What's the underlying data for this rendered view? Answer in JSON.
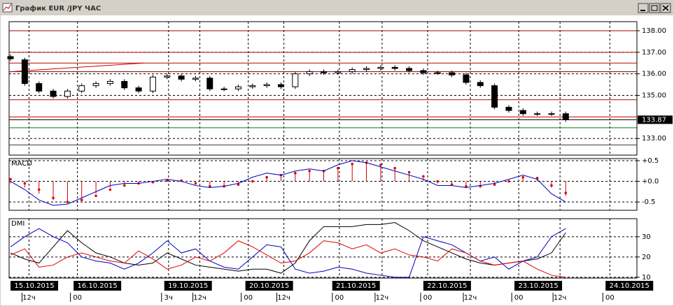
{
  "window": {
    "title": "График EUR /JPY  ЧАС"
  },
  "chart_data": [
    {
      "type": "candlestick",
      "xlim": [
        -0.1,
        44.0
      ],
      "ylim": [
        132.23,
        138.42
      ],
      "yticks": [
        {
          "value": 138,
          "label": "138.00"
        },
        {
          "value": 137,
          "label": "137.00"
        },
        {
          "value": 136,
          "label": "136.00"
        },
        {
          "value": 135,
          "label": "135.00"
        },
        {
          "value": 133,
          "label": "133.00"
        }
      ],
      "grid": true,
      "bull_color": "#ffffff",
      "bear_color": "#000000",
      "open": [
        136.8,
        136.65,
        135.55,
        135.2,
        134.95,
        135.2,
        135.45,
        135.55,
        135.65,
        135.35,
        135.2,
        135.85,
        135.9,
        135.75,
        135.8,
        135.3,
        135.3,
        135.4,
        135.45,
        135.5,
        135.4,
        136.0,
        136.1,
        136.05,
        136.1,
        136.2,
        136.25,
        136.3,
        136.25,
        136.15,
        136.05,
        136.05,
        135.95,
        135.6,
        135.45,
        134.45,
        134.3,
        134.15,
        134.15,
        134.15
      ],
      "high": [
        136.9,
        136.75,
        135.65,
        135.3,
        135.3,
        135.55,
        135.65,
        135.75,
        135.75,
        135.45,
        135.95,
        136.0,
        136.0,
        135.9,
        135.9,
        135.4,
        135.5,
        135.55,
        135.6,
        135.6,
        136.1,
        136.2,
        136.2,
        136.2,
        136.3,
        136.35,
        136.4,
        136.4,
        136.35,
        136.25,
        136.15,
        136.15,
        136.05,
        135.7,
        135.55,
        134.55,
        134.4,
        134.25,
        134.25,
        134.25
      ],
      "low": [
        136.6,
        135.45,
        135.1,
        134.85,
        134.85,
        135.1,
        135.35,
        135.45,
        135.25,
        135.1,
        135.1,
        135.75,
        135.65,
        135.65,
        135.2,
        135.2,
        135.2,
        135.3,
        135.35,
        135.3,
        135.3,
        135.9,
        135.95,
        135.95,
        136.0,
        136.1,
        136.15,
        136.15,
        136.05,
        135.95,
        135.95,
        135.85,
        135.5,
        135.35,
        134.35,
        134.2,
        134.05,
        134.05,
        134.05,
        133.77
      ],
      "close": [
        136.7,
        135.55,
        135.2,
        134.95,
        135.2,
        135.45,
        135.55,
        135.65,
        135.35,
        135.2,
        135.85,
        135.9,
        135.75,
        135.8,
        135.3,
        135.3,
        135.4,
        135.45,
        135.5,
        135.4,
        136.0,
        136.1,
        136.05,
        136.1,
        136.2,
        136.25,
        136.3,
        136.25,
        136.15,
        136.05,
        136.05,
        135.95,
        135.6,
        135.45,
        134.45,
        134.3,
        134.15,
        134.15,
        134.15,
        133.87
      ],
      "current_price": 133.87,
      "levels": [
        {
          "value": 138.0,
          "color": "#a00000"
        },
        {
          "value": 137.0,
          "color": "#c00000"
        },
        {
          "value": 136.5,
          "color": "#c00000"
        },
        {
          "value": 136.1,
          "color": "#800000"
        },
        {
          "value": 134.8,
          "color": "#c00000"
        },
        {
          "value": 134.0,
          "color": "#c00000"
        },
        {
          "value": 133.5,
          "color": "#008000"
        },
        {
          "value": 132.7,
          "color": "#404040"
        }
      ],
      "trendline": {
        "x": [
          0,
          9.35
        ],
        "y": [
          136.1,
          136.5
        ],
        "color": "#d00000"
      }
    },
    {
      "type": "macd",
      "title": "MACD",
      "xlim": [
        -0.1,
        44.0
      ],
      "ylim": [
        -0.7,
        0.55
      ],
      "yticks": [
        {
          "value": 0.5,
          "label": "+0.5"
        },
        {
          "value": 0,
          "label": "+0.0"
        },
        {
          "value": -0.5,
          "label": "-0.5"
        }
      ],
      "grid": true,
      "series": [
        {
          "style": "bars",
          "color": "#d00000",
          "values": [
            -0.05,
            -0.15,
            -0.3,
            -0.45,
            -0.5,
            -0.4,
            -0.3,
            -0.15,
            -0.08,
            -0.05,
            0.0,
            0.03,
            0.02,
            -0.07,
            -0.13,
            -0.12,
            -0.06,
            0.03,
            0.12,
            0.16,
            0.22,
            0.27,
            0.26,
            0.35,
            0.45,
            0.45,
            0.38,
            0.3,
            0.2,
            0.08,
            -0.05,
            -0.1,
            -0.13,
            -0.11,
            -0.06,
            0.02,
            0.12,
            0.06,
            -0.15,
            -0.35
          ]
        },
        {
          "style": "dots",
          "color": "#e00000",
          "values": [
            0.05,
            -0.05,
            -0.2,
            -0.4,
            -0.5,
            -0.45,
            -0.35,
            -0.2,
            -0.1,
            -0.05,
            -0.02,
            0.02,
            0.02,
            -0.05,
            -0.12,
            -0.12,
            -0.08,
            0.0,
            0.1,
            0.15,
            0.2,
            0.25,
            0.25,
            0.32,
            0.42,
            0.45,
            0.4,
            0.32,
            0.22,
            0.12,
            0.0,
            -0.08,
            -0.12,
            -0.12,
            -0.08,
            0.0,
            0.1,
            0.08,
            -0.1,
            -0.28
          ]
        },
        {
          "style": "line",
          "color": "#0000c0",
          "values": [
            0.0,
            -0.2,
            -0.45,
            -0.58,
            -0.55,
            -0.4,
            -0.25,
            -0.1,
            -0.05,
            -0.05,
            0.0,
            0.05,
            0.0,
            -0.1,
            -0.15,
            -0.12,
            -0.05,
            0.1,
            0.2,
            0.15,
            0.25,
            0.3,
            0.25,
            0.4,
            0.5,
            0.45,
            0.35,
            0.25,
            0.15,
            0.05,
            -0.1,
            -0.1,
            -0.15,
            -0.1,
            -0.05,
            0.05,
            0.15,
            0.05,
            -0.3,
            -0.5
          ]
        }
      ]
    },
    {
      "type": "line",
      "title": "DMI",
      "xlim": [
        -0.1,
        44.0
      ],
      "ylim": [
        9.6,
        38.9
      ],
      "yticks": [
        30,
        20,
        10
      ],
      "grid": true,
      "series": [
        {
          "color": "#000000",
          "values": [
            22,
            19,
            17,
            25,
            33,
            27,
            22,
            20,
            17,
            16,
            17,
            22,
            19,
            16,
            15,
            14,
            13,
            14,
            14,
            12,
            17,
            28,
            35,
            35,
            35,
            36,
            36,
            37,
            33,
            28,
            25,
            22,
            19,
            17,
            16,
            17,
            18,
            19,
            22,
            32
          ]
        },
        {
          "color": "#0000c0",
          "values": [
            25,
            30,
            34,
            30,
            27,
            20,
            18,
            17,
            14,
            17,
            22,
            28,
            22,
            24,
            18,
            15,
            14,
            20,
            26,
            25,
            14,
            12,
            13,
            15,
            14,
            12,
            11,
            10,
            10,
            30,
            28,
            26,
            22,
            18,
            20,
            14,
            18,
            20,
            30,
            34
          ]
        },
        {
          "color": "#e00000",
          "values": [
            21,
            24,
            15,
            16,
            20,
            22,
            20,
            18,
            17,
            23,
            19,
            14,
            16,
            20,
            18,
            22,
            28,
            25,
            21,
            17,
            18,
            22,
            28,
            27,
            24,
            26,
            22,
            24,
            21,
            20,
            18,
            24,
            22,
            18,
            16,
            17,
            18,
            14,
            11,
            10
          ]
        }
      ],
      "xticks": [
        {
          "value": 1.3,
          "label": "12ч"
        },
        {
          "value": 4.7,
          "label": "00"
        },
        {
          "value": 11.1,
          "label": "3ч"
        },
        {
          "value": 13.3,
          "label": "12ч"
        },
        {
          "value": 16.7,
          "label": "00"
        },
        {
          "value": 19.2,
          "label": "12ч"
        },
        {
          "value": 23.1,
          "label": "00"
        },
        {
          "value": 26.1,
          "label": "12ч"
        },
        {
          "value": 29.3,
          "label": "00"
        },
        {
          "value": 32.3,
          "label": "12ч"
        },
        {
          "value": 35.7,
          "label": "00"
        },
        {
          "value": 38.6,
          "label": "12ч"
        },
        {
          "value": 42.1,
          "label": "00"
        }
      ],
      "date_ticks": [
        {
          "value": 0,
          "label": "15.10.2015"
        },
        {
          "value": 4.43,
          "label": "16.10.2015"
        },
        {
          "value": 10.8,
          "label": "19.10.2015"
        },
        {
          "value": 16.5,
          "label": "20.10.2015"
        },
        {
          "value": 22.6,
          "label": "21.10.2015"
        },
        {
          "value": 29.0,
          "label": "22.10.2015"
        },
        {
          "value": 35.4,
          "label": "23.10.2015"
        },
        {
          "value": 41.8,
          "label": "24.10.2015"
        }
      ]
    }
  ]
}
